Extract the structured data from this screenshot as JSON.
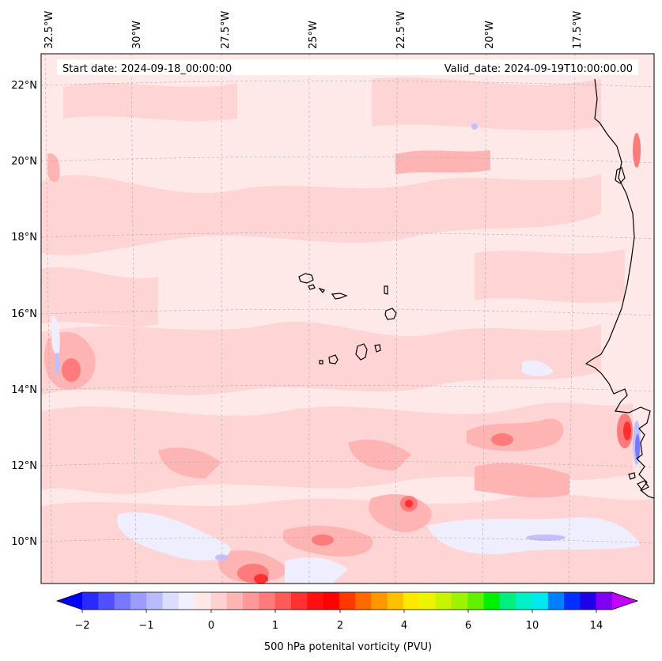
{
  "header": {
    "start_date": "Start date: 2024-09-18_00:00:00",
    "valid_date": "Valid_date: 2024-09-19T10:00:00.00"
  },
  "lon_labels": [
    "32.5°W",
    "30°W",
    "27.5°W",
    "25°W",
    "22.5°W",
    "20°W",
    "17.5°W"
  ],
  "lat_labels": [
    "22°N",
    "20°N",
    "18°N",
    "16°N",
    "14°N",
    "12°N",
    "10°N"
  ],
  "colorbar": {
    "label": "500 hPa potenital vorticity (PVU)",
    "ticks": [
      "−2",
      "−1",
      "0",
      "1",
      "2",
      "4",
      "6",
      "10",
      "14"
    ],
    "colors": [
      "#0000ff",
      "#2a2aff",
      "#5050ff",
      "#7878ff",
      "#9c9cff",
      "#babaff",
      "#dcdcff",
      "#f0f0ff",
      "#ffe8e8",
      "#ffd0d0",
      "#ffb4b4",
      "#ff9898",
      "#ff7a7a",
      "#ff5a5a",
      "#ff3030",
      "#ff1010",
      "#ff0000",
      "#ff3800",
      "#ff6a00",
      "#ff9800",
      "#ffc000",
      "#ffe800",
      "#ecf400",
      "#c8f400",
      "#9cf400",
      "#60f000",
      "#00f000",
      "#00f080",
      "#00f0c8",
      "#00e8f0",
      "#0080ff",
      "#0030ff",
      "#2000e8",
      "#8000f0",
      "#c000f8"
    ]
  }
}
